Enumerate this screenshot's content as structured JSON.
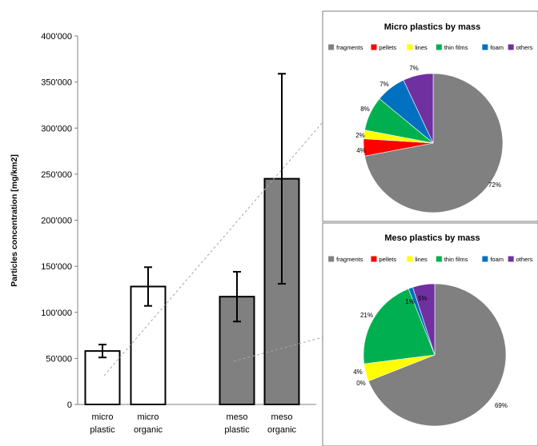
{
  "colors": {
    "fragments": "#808080",
    "pellets": "#ff0000",
    "lines": "#ffff00",
    "thin_films": "#00b050",
    "foam": "#0070c0",
    "others": "#7030a0",
    "micro_bar_fill": "#ffffff",
    "meso_bar_fill": "#808080"
  },
  "chart_data": [
    {
      "type": "bar",
      "ylabel": "Particles concentration [mg/km2]",
      "xlabel": "",
      "ylim": [
        0,
        400000
      ],
      "yticks": [
        0,
        50000,
        100000,
        150000,
        200000,
        250000,
        300000,
        350000,
        400000
      ],
      "ytick_labels": [
        "0",
        "50'000",
        "100'000",
        "150'000",
        "200'000",
        "250'000",
        "300'000",
        "350'000",
        "400'000"
      ],
      "grid": false,
      "categories": [
        [
          "micro",
          "plastic"
        ],
        [
          "micro",
          "organic"
        ],
        [
          "meso",
          "plastic"
        ],
        [
          "meso",
          "organic"
        ]
      ],
      "values": [
        58000,
        128000,
        117000,
        245000
      ],
      "error_low": [
        51000,
        107000,
        90000,
        131000
      ],
      "error_high": [
        65000,
        149000,
        144000,
        359000
      ]
    },
    {
      "type": "pie",
      "title": "Micro plastics by mass",
      "legend": [
        "fragments",
        "pellets",
        "lines",
        "thin films",
        "foam",
        "others"
      ],
      "legend_position": "top",
      "values": [
        72,
        4,
        2,
        8,
        7,
        7
      ],
      "labels": [
        "72%",
        "4%",
        "2%",
        "8%",
        "7%",
        "7%"
      ]
    },
    {
      "type": "pie",
      "title": "Meso plastics by mass",
      "legend": [
        "fragments",
        "pellets",
        "lines",
        "thin films",
        "foam",
        "others"
      ],
      "legend_position": "top",
      "values": [
        69,
        0,
        4,
        21,
        1,
        5
      ],
      "labels": [
        "69%",
        "0%",
        "4%",
        "21%",
        "1%",
        "5%"
      ]
    }
  ]
}
